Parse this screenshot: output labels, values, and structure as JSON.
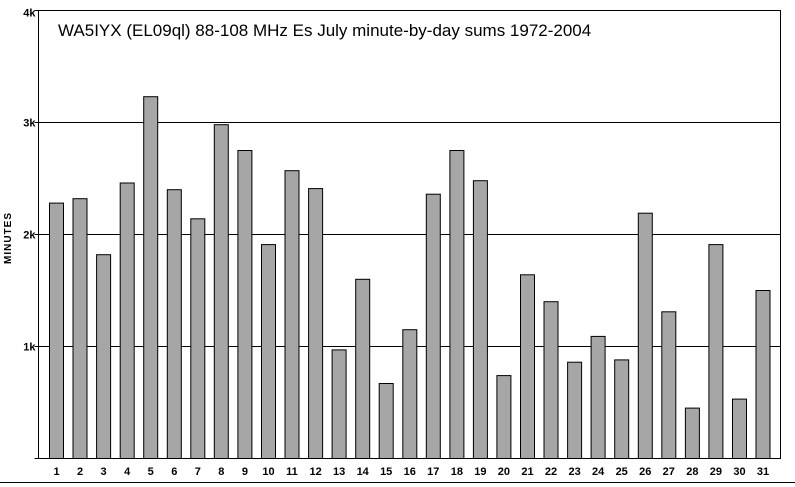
{
  "chart_data": {
    "type": "bar",
    "title": "WA5IYX (EL09ql) 88-108 MHz Es July minute-by-day sums 1972-2004",
    "ylabel": "MINUTES",
    "xlabel": "",
    "ylim": [
      0,
      4000
    ],
    "yticks": [
      {
        "value": 0,
        "label": ""
      },
      {
        "value": 1000,
        "label": "1k"
      },
      {
        "value": 2000,
        "label": "2k"
      },
      {
        "value": 3000,
        "label": "3k"
      },
      {
        "value": 4000,
        "label": "4k"
      }
    ],
    "grid": true,
    "legend": "none",
    "bar_color": "#a6a6a6",
    "categories": [
      "1",
      "2",
      "3",
      "4",
      "5",
      "6",
      "7",
      "8",
      "9",
      "10",
      "11",
      "12",
      "13",
      "14",
      "15",
      "16",
      "17",
      "18",
      "19",
      "20",
      "21",
      "22",
      "23",
      "24",
      "25",
      "26",
      "27",
      "28",
      "29",
      "30",
      "31"
    ],
    "values": [
      2280,
      2320,
      1820,
      2460,
      3230,
      2400,
      2140,
      2980,
      2750,
      1910,
      2570,
      2410,
      970,
      1600,
      670,
      1150,
      2360,
      2750,
      2480,
      740,
      1640,
      1400,
      860,
      1090,
      880,
      2190,
      1310,
      450,
      1910,
      530,
      1500
    ]
  }
}
